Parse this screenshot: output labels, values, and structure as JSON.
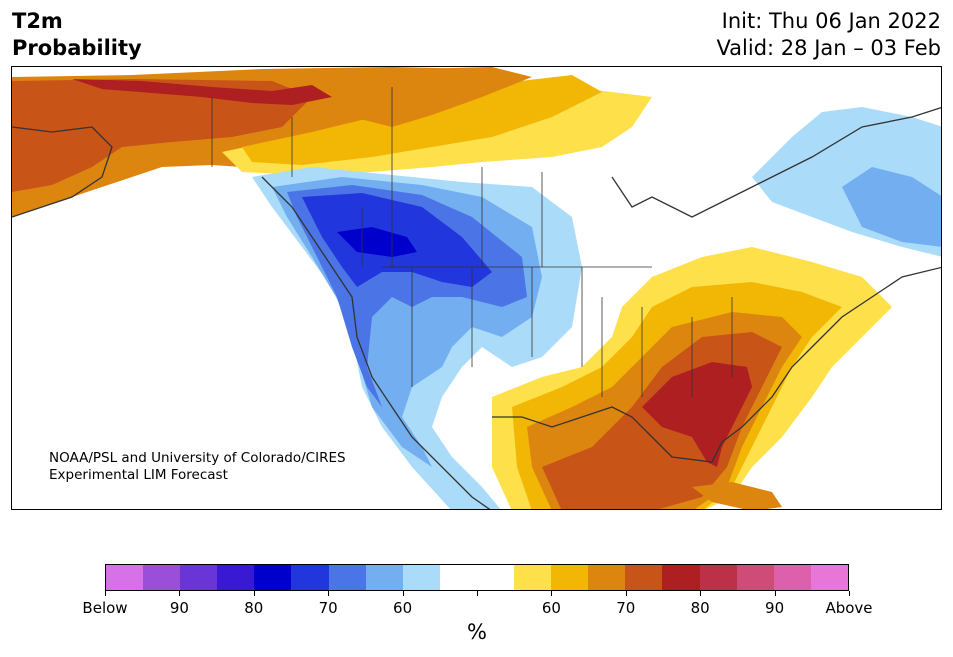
{
  "header": {
    "variable": "T2m",
    "product": "Probability",
    "init": "Init: Thu 06 Jan 2022",
    "valid": "Valid: 28 Jan – 03 Feb"
  },
  "credit": {
    "line1": "NOAA/PSL and University of Colorado/CIRES",
    "line2": "Experimental LIM Forecast"
  },
  "colorbar": {
    "unit": "%",
    "colors": [
      "#d771e8",
      "#9a4fd9",
      "#6a35d6",
      "#3a19d4",
      "#0000cc",
      "#2236dd",
      "#4b75e6",
      "#72aef0",
      "#aadcf9",
      "#ffffff",
      "#ffffff",
      "#fee04b",
      "#f2b705",
      "#dd860f",
      "#c85418",
      "#ae1f22",
      "#bc3048",
      "#cf4c78",
      "#dc60ac",
      "#e875d8"
    ],
    "labels": [
      "Below",
      "90",
      "80",
      "70",
      "60",
      "",
      "60",
      "70",
      "80",
      "90",
      "Above"
    ]
  },
  "map": {
    "region": "North America",
    "colors": {
      "above_60": "#fee04b",
      "above_65": "#f2b705",
      "above_70": "#dd860f",
      "above_75": "#c85418",
      "above_80": "#ae1f22",
      "below_60": "#aadcf9",
      "below_65": "#72aef0",
      "below_70": "#4b75e6",
      "below_75": "#2236dd",
      "below_80": "#0000cc",
      "coastline": "#333333"
    }
  }
}
